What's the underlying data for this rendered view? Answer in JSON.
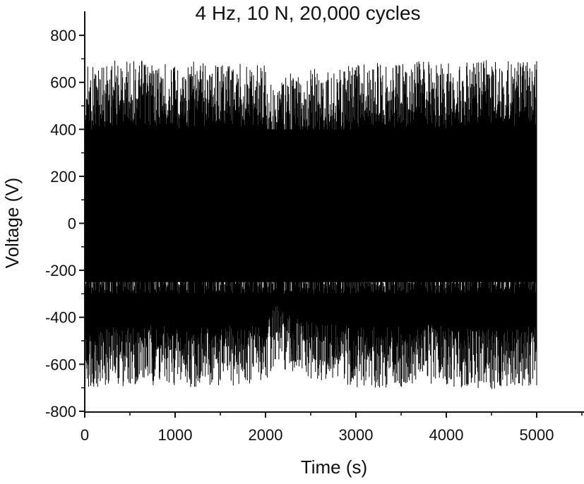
{
  "chart_data": {
    "type": "line",
    "title": "4 Hz, 10 N, 20,000 cycles",
    "xlabel": "Time (s)",
    "ylabel": "Voltage (V)",
    "xlim": [
      0,
      5500
    ],
    "ylim": [
      -800,
      850
    ],
    "xticks": [
      0,
      1000,
      2000,
      3000,
      4000,
      5000
    ],
    "yticks": [
      -800,
      -600,
      -400,
      -200,
      0,
      200,
      400,
      600,
      800
    ],
    "grid": false,
    "legend": "none",
    "series": [
      {
        "color": "#000000",
        "x_range": [
          0,
          5000
        ],
        "cycles": 20000,
        "frequency_hz": 4,
        "envelope_upper": [
          [
            0,
            670
          ],
          [
            250,
            690
          ],
          [
            500,
            700
          ],
          [
            750,
            690
          ],
          [
            1000,
            680
          ],
          [
            1250,
            690
          ],
          [
            1500,
            700
          ],
          [
            1750,
            690
          ],
          [
            2000,
            690
          ],
          [
            2050,
            580
          ],
          [
            2250,
            640
          ],
          [
            2500,
            660
          ],
          [
            2750,
            650
          ],
          [
            3000,
            680
          ],
          [
            3250,
            690
          ],
          [
            3500,
            690
          ],
          [
            3750,
            690
          ],
          [
            4000,
            680
          ],
          [
            4250,
            690
          ],
          [
            4500,
            700
          ],
          [
            4750,
            690
          ],
          [
            5000,
            690
          ]
        ],
        "envelope_lower": [
          [
            0,
            -700
          ],
          [
            250,
            -700
          ],
          [
            500,
            -690
          ],
          [
            750,
            -690
          ],
          [
            1000,
            -700
          ],
          [
            1250,
            -700
          ],
          [
            1500,
            -700
          ],
          [
            1750,
            -690
          ],
          [
            2000,
            -680
          ],
          [
            2100,
            -600
          ],
          [
            2250,
            -650
          ],
          [
            2500,
            -680
          ],
          [
            2750,
            -690
          ],
          [
            3000,
            -700
          ],
          [
            3250,
            -700
          ],
          [
            3500,
            -700
          ],
          [
            3750,
            -680
          ],
          [
            4000,
            -700
          ],
          [
            4250,
            -700
          ],
          [
            4500,
            -710
          ],
          [
            4750,
            -700
          ],
          [
            5000,
            -690
          ]
        ],
        "dense_band": [
          -250,
          400
        ]
      }
    ]
  }
}
